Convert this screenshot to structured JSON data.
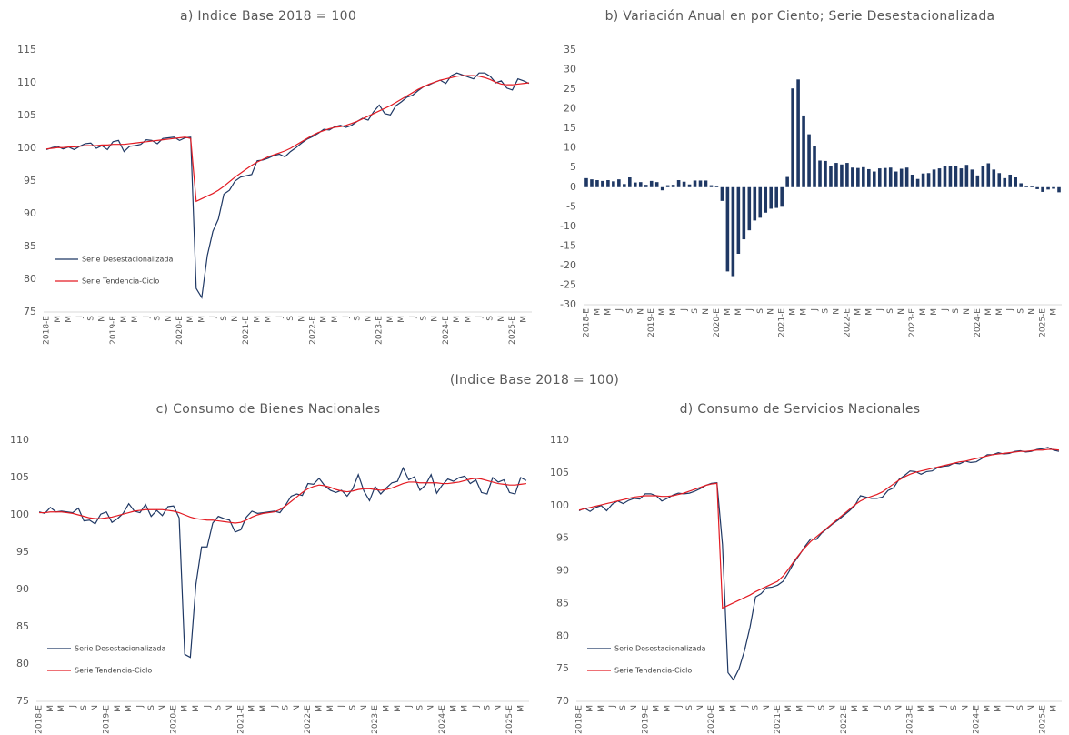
{
  "heading": "(Indice Base 2018 = 100)",
  "chart_data": [
    {
      "type": "line",
      "title": "a) Indice Base 2018 = 100",
      "categories": [
        "2018-E",
        null,
        "M",
        null,
        "M",
        null,
        "J",
        null,
        "S",
        null,
        "N",
        null,
        "2019-E",
        null,
        "M",
        null,
        "M",
        null,
        "J",
        null,
        "S",
        null,
        "N",
        null,
        "2020-E",
        null,
        "M",
        null,
        "M",
        null,
        "J",
        null,
        "S",
        null,
        "N",
        null,
        "2021-E",
        null,
        "M",
        null,
        "M",
        null,
        "J",
        null,
        "S",
        null,
        "N",
        null,
        "2022-E",
        null,
        "M",
        null,
        "M",
        null,
        "J",
        null,
        "S",
        null,
        "N",
        null,
        "2023-E",
        null,
        "M",
        null,
        "M",
        null,
        "J",
        null,
        "S",
        null,
        "N",
        null,
        "2024-E",
        null,
        "M",
        null,
        "M",
        null,
        "J",
        null,
        "S",
        null,
        "N",
        null,
        "2025-E",
        null,
        "M",
        null
      ],
      "series": [
        {
          "name": "Serie Desestacionalizada",
          "color": "#1f3864",
          "values": [
            99.8,
            100.1,
            100.3,
            99.9,
            100.2,
            99.8,
            100.3,
            100.7,
            100.8,
            100.0,
            100.4,
            99.8,
            101.0,
            101.2,
            99.5,
            100.3,
            100.4,
            100.6,
            101.3,
            101.2,
            100.7,
            101.5,
            101.6,
            101.7,
            101.2,
            101.6,
            101.7,
            78.6,
            77.2,
            83.6,
            87.3,
            89.2,
            93.0,
            93.6,
            95.0,
            95.6,
            95.8,
            96.0,
            98.1,
            98.2,
            98.5,
            98.9,
            99.1,
            98.7,
            99.5,
            100.1,
            100.8,
            101.4,
            101.8,
            102.3,
            102.9,
            102.8,
            103.3,
            103.5,
            103.2,
            103.5,
            104.1,
            104.6,
            104.3,
            105.6,
            106.6,
            105.3,
            105.1,
            106.5,
            107.1,
            107.8,
            108.1,
            108.8,
            109.4,
            109.7,
            110.1,
            110.4,
            109.9,
            111.1,
            111.5,
            111.2,
            110.9,
            110.6,
            111.5,
            111.5,
            111.0,
            110.0,
            110.3,
            109.2,
            108.9,
            110.6,
            110.3,
            109.9
          ]
        },
        {
          "name": "Serie Tendencia-Ciclo",
          "color": "#e31b23",
          "values": [
            99.9,
            100.0,
            100.1,
            100.1,
            100.2,
            100.2,
            100.3,
            100.4,
            100.4,
            100.4,
            100.5,
            100.5,
            100.6,
            100.6,
            100.6,
            100.7,
            100.8,
            100.9,
            101.0,
            101.1,
            101.2,
            101.3,
            101.4,
            101.5,
            101.6,
            101.7,
            101.5,
            91.9,
            92.3,
            92.7,
            93.1,
            93.6,
            94.2,
            94.9,
            95.6,
            96.2,
            96.8,
            97.4,
            97.9,
            98.3,
            98.7,
            99.0,
            99.3,
            99.6,
            100.0,
            100.5,
            101.0,
            101.5,
            102.0,
            102.4,
            102.7,
            103.0,
            103.2,
            103.3,
            103.5,
            103.8,
            104.1,
            104.5,
            104.9,
            105.3,
            105.7,
            106.1,
            106.5,
            107.0,
            107.5,
            108.0,
            108.5,
            109.0,
            109.4,
            109.8,
            110.1,
            110.4,
            110.6,
            110.8,
            111.0,
            111.1,
            111.1,
            111.1,
            111.0,
            110.8,
            110.5,
            110.1,
            109.8,
            109.7,
            109.7,
            109.8,
            109.9,
            110.0
          ]
        }
      ],
      "ylim": [
        75,
        115
      ],
      "yticks": [
        75,
        80,
        85,
        90,
        95,
        100,
        105,
        110,
        115
      ],
      "grid": false,
      "legend": "lower-left"
    },
    {
      "type": "bar",
      "title": "b) Variación Anual en por Ciento; Serie Desestacionalizada",
      "categories": [
        "2018-E",
        null,
        "M",
        null,
        "M",
        null,
        "J",
        null,
        "S",
        null,
        "N",
        null,
        "2019-E",
        null,
        "M",
        null,
        "M",
        null,
        "J",
        null,
        "S",
        null,
        "N",
        null,
        "2020-E",
        null,
        "M",
        null,
        "M",
        null,
        "J",
        null,
        "S",
        null,
        "N",
        null,
        "2021-E",
        null,
        "M",
        null,
        "M",
        null,
        "J",
        null,
        "S",
        null,
        "N",
        null,
        "2022-E",
        null,
        "M",
        null,
        "M",
        null,
        "J",
        null,
        "S",
        null,
        "N",
        null,
        "2023-E",
        null,
        "M",
        null,
        "M",
        null,
        "J",
        null,
        "S",
        null,
        "N",
        null,
        "2024-E",
        null,
        "M",
        null,
        "M",
        null,
        "J",
        null,
        "S",
        null,
        "N",
        null,
        "2025-E",
        null,
        "M",
        null
      ],
      "values": [
        2.3,
        2.0,
        1.8,
        1.6,
        1.8,
        1.5,
        2.0,
        0.8,
        2.5,
        1.2,
        1.3,
        0.6,
        1.6,
        1.3,
        -0.8,
        0.5,
        0.6,
        1.8,
        1.4,
        0.7,
        1.7,
        1.7,
        1.7,
        0.5,
        0.4,
        -3.5,
        -21.5,
        -22.7,
        -17.0,
        -13.3,
        -11.0,
        -8.5,
        -7.8,
        -6.5,
        -5.5,
        -5.3,
        -5.0,
        2.6,
        25.2,
        27.5,
        18.3,
        13.5,
        10.6,
        6.8,
        6.7,
        5.5,
        6.2,
        5.8,
        6.2,
        5.0,
        4.9,
        5.1,
        4.6,
        4.0,
        4.8,
        4.9,
        5.0,
        4.0,
        4.7,
        5.0,
        3.2,
        2.1,
        3.5,
        3.6,
        4.5,
        4.8,
        5.3,
        5.3,
        5.3,
        4.8,
        5.7,
        4.5,
        3.0,
        5.5,
        6.1,
        4.5,
        3.6,
        2.3,
        3.2,
        2.5,
        1.0,
        0.3,
        0.3,
        -0.5,
        -1.2,
        -0.6,
        -0.4,
        -1.3
      ],
      "color": "#1f3864",
      "ylim": [
        -30,
        35
      ],
      "yticks": [
        -30,
        -25,
        -20,
        -15,
        -10,
        -5,
        0,
        5,
        10,
        15,
        20,
        25,
        30,
        35
      ],
      "grid": false
    },
    {
      "type": "line",
      "title": "c) Consumo de Bienes Nacionales",
      "categories": [
        "2018-E",
        null,
        "M",
        null,
        "M",
        null,
        "J",
        null,
        "S",
        null,
        "N",
        null,
        "2019-E",
        null,
        "M",
        null,
        "M",
        null,
        "J",
        null,
        "S",
        null,
        "N",
        null,
        "2020-E",
        null,
        "M",
        null,
        "M",
        null,
        "J",
        null,
        "S",
        null,
        "N",
        null,
        "2021-E",
        null,
        "M",
        null,
        "M",
        null,
        "J",
        null,
        "S",
        null,
        "N",
        null,
        "2022-E",
        null,
        "M",
        null,
        "M",
        null,
        "J",
        null,
        "S",
        null,
        "N",
        null,
        "2023-E",
        null,
        "M",
        null,
        "M",
        null,
        "J",
        null,
        "S",
        null,
        "N",
        null,
        "2024-E",
        null,
        "M",
        null,
        "M",
        null,
        "J",
        null,
        "S",
        null,
        "N",
        null,
        "2025-E",
        null,
        "M",
        null
      ],
      "series": [
        {
          "name": "Serie Desestacionalizada",
          "color": "#1f3864",
          "values": [
            100.4,
            100.2,
            101.0,
            100.4,
            100.5,
            100.4,
            100.3,
            100.9,
            99.2,
            99.3,
            98.8,
            100.1,
            100.4,
            99.0,
            99.5,
            100.2,
            101.5,
            100.5,
            100.3,
            101.4,
            99.8,
            100.6,
            99.9,
            101.1,
            101.2,
            99.6,
            81.3,
            80.9,
            90.7,
            95.7,
            95.7,
            98.9,
            99.8,
            99.5,
            99.3,
            97.7,
            98.0,
            99.7,
            100.5,
            100.2,
            100.3,
            100.4,
            100.5,
            100.3,
            101.3,
            102.5,
            102.8,
            102.6,
            104.2,
            104.1,
            104.9,
            103.9,
            103.3,
            103.0,
            103.3,
            102.5,
            103.5,
            105.4,
            103.2,
            101.9,
            103.8,
            102.8,
            103.6,
            104.3,
            104.5,
            106.3,
            104.7,
            105.1,
            103.3,
            104.0,
            105.4,
            102.9,
            104.0,
            104.8,
            104.5,
            105.0,
            105.2,
            104.2,
            104.7,
            103.0,
            102.8,
            105.0,
            104.4,
            104.7,
            103.0,
            102.8,
            105.0,
            104.6
          ]
        },
        {
          "name": "Serie Tendencia-Ciclo",
          "color": "#e31b23",
          "values": [
            100.3,
            100.3,
            100.4,
            100.4,
            100.4,
            100.3,
            100.2,
            100.0,
            99.8,
            99.6,
            99.5,
            99.5,
            99.6,
            99.7,
            99.9,
            100.1,
            100.3,
            100.5,
            100.6,
            100.7,
            100.7,
            100.7,
            100.7,
            100.6,
            100.5,
            100.3,
            100.0,
            99.7,
            99.5,
            99.4,
            99.3,
            99.3,
            99.2,
            99.1,
            99.0,
            98.9,
            99.0,
            99.3,
            99.7,
            100.0,
            100.2,
            100.3,
            100.4,
            100.7,
            101.2,
            101.8,
            102.4,
            103.0,
            103.5,
            103.8,
            104.0,
            103.9,
            103.7,
            103.4,
            103.2,
            103.1,
            103.2,
            103.4,
            103.5,
            103.5,
            103.4,
            103.3,
            103.4,
            103.6,
            103.9,
            104.2,
            104.4,
            104.4,
            104.3,
            104.3,
            104.3,
            104.3,
            104.2,
            104.2,
            104.3,
            104.4,
            104.6,
            104.8,
            104.9,
            104.8,
            104.6,
            104.4,
            104.2,
            104.1,
            104.0,
            104.0,
            104.1,
            104.2
          ]
        }
      ],
      "ylim": [
        75,
        110
      ],
      "yticks": [
        75,
        80,
        85,
        90,
        95,
        100,
        105,
        110
      ],
      "grid": false,
      "legend": "lower-left"
    },
    {
      "type": "line",
      "title": "d) Consumo de Servicios Nacionales",
      "categories": [
        "2018-E",
        null,
        "M",
        null,
        "M",
        null,
        "J",
        null,
        "S",
        null,
        "N",
        null,
        "2019-E",
        null,
        "M",
        null,
        "M",
        null,
        "J",
        null,
        "S",
        null,
        "N",
        null,
        "2020-E",
        null,
        "M",
        null,
        "M",
        null,
        "J",
        null,
        "S",
        null,
        "N",
        null,
        "2021-E",
        null,
        "M",
        null,
        "M",
        null,
        "J",
        null,
        "S",
        null,
        "N",
        null,
        "2022-E",
        null,
        "M",
        null,
        "M",
        null,
        "J",
        null,
        "S",
        null,
        "N",
        null,
        "2023-E",
        null,
        "M",
        null,
        "M",
        null,
        "J",
        null,
        "S",
        null,
        "N",
        null,
        "2024-E",
        null,
        "M",
        null,
        "M",
        null,
        "J",
        null,
        "S",
        null,
        "N",
        null,
        "2025-E",
        null,
        "M",
        null
      ],
      "series": [
        {
          "name": "Serie Desestacionalizada",
          "color": "#1f3864",
          "values": [
            99.2,
            99.6,
            99.1,
            99.7,
            100.0,
            99.2,
            100.2,
            100.7,
            100.3,
            100.8,
            101.1,
            101.0,
            101.8,
            101.8,
            101.5,
            100.7,
            101.1,
            101.6,
            101.9,
            101.8,
            101.9,
            102.2,
            102.6,
            103.1,
            103.4,
            103.5,
            94.0,
            74.4,
            73.3,
            75.0,
            77.8,
            81.4,
            86.0,
            86.5,
            87.4,
            87.5,
            87.8,
            88.4,
            89.8,
            91.3,
            92.5,
            93.8,
            94.9,
            94.8,
            95.8,
            96.5,
            97.2,
            97.8,
            98.5,
            99.2,
            100.0,
            101.5,
            101.3,
            101.1,
            101.1,
            101.3,
            102.3,
            102.7,
            104.0,
            104.6,
            105.3,
            105.2,
            104.8,
            105.2,
            105.3,
            105.8,
            106.0,
            106.1,
            106.5,
            106.4,
            106.8,
            106.6,
            106.7,
            107.2,
            107.8,
            107.8,
            108.1,
            107.9,
            108.0,
            108.3,
            108.4,
            108.2,
            108.3,
            108.6,
            108.7,
            108.9,
            108.5,
            108.3
          ]
        },
        {
          "name": "Serie Tendencia-Ciclo",
          "color": "#e31b23",
          "values": [
            99.3,
            99.5,
            99.7,
            99.9,
            100.1,
            100.3,
            100.5,
            100.7,
            100.9,
            101.1,
            101.3,
            101.4,
            101.5,
            101.5,
            101.5,
            101.4,
            101.4,
            101.5,
            101.7,
            101.9,
            102.2,
            102.5,
            102.8,
            103.1,
            103.3,
            103.4,
            84.3,
            84.7,
            85.1,
            85.5,
            85.9,
            86.3,
            86.8,
            87.2,
            87.6,
            88.0,
            88.4,
            89.2,
            90.3,
            91.5,
            92.6,
            93.6,
            94.5,
            95.2,
            95.9,
            96.6,
            97.3,
            98.0,
            98.7,
            99.4,
            100.1,
            100.7,
            101.1,
            101.4,
            101.7,
            102.1,
            102.7,
            103.3,
            103.9,
            104.4,
            104.8,
            105.1,
            105.3,
            105.5,
            105.7,
            105.9,
            106.1,
            106.3,
            106.5,
            106.7,
            106.8,
            107.0,
            107.2,
            107.4,
            107.6,
            107.8,
            107.9,
            108.0,
            108.1,
            108.2,
            108.3,
            108.3,
            108.4,
            108.5,
            108.5,
            108.6,
            108.6,
            108.5
          ]
        }
      ],
      "ylim": [
        70,
        110
      ],
      "yticks": [
        70,
        75,
        80,
        85,
        90,
        95,
        100,
        105,
        110
      ],
      "grid": false,
      "legend": "lower-left"
    }
  ]
}
